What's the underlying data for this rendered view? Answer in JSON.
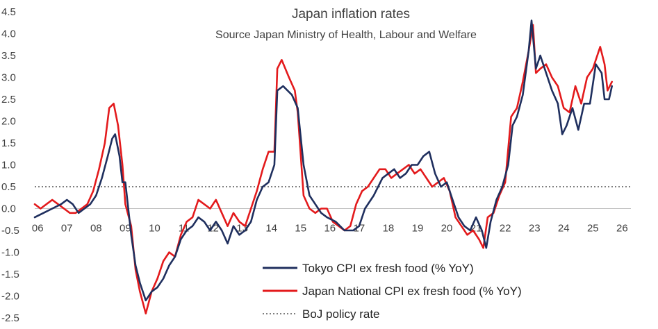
{
  "chart_data": {
    "type": "line",
    "title": "Japan inflation rates",
    "subtitle": "Source Japan Ministry of Health, Labour and Welfare",
    "xlabel": "",
    "ylabel": "",
    "ylim": [
      -2.5,
      4.5
    ],
    "xlim": [
      2006.0,
      2026.4
    ],
    "x_ticks": [
      {
        "x": 2006.1,
        "label": "06"
      },
      {
        "x": 2007.1,
        "label": "07"
      },
      {
        "x": 2008.1,
        "label": "08"
      },
      {
        "x": 2009.1,
        "label": "09"
      },
      {
        "x": 2010.1,
        "label": "10"
      },
      {
        "x": 2011.1,
        "label": "11"
      },
      {
        "x": 2012.1,
        "label": "12"
      },
      {
        "x": 2013.1,
        "label": "13"
      },
      {
        "x": 2014.1,
        "label": "14"
      },
      {
        "x": 2015.1,
        "label": "15"
      },
      {
        "x": 2016.1,
        "label": "16"
      },
      {
        "x": 2017.1,
        "label": "17"
      },
      {
        "x": 2018.1,
        "label": "18"
      },
      {
        "x": 2019.1,
        "label": "19"
      },
      {
        "x": 2020.1,
        "label": "20"
      },
      {
        "x": 2021.1,
        "label": "21"
      },
      {
        "x": 2022.1,
        "label": "22"
      },
      {
        "x": 2023.1,
        "label": "23"
      },
      {
        "x": 2024.1,
        "label": "24"
      },
      {
        "x": 2025.1,
        "label": "25"
      },
      {
        "x": 2026.1,
        "label": "26"
      }
    ],
    "y_ticks": [
      {
        "y": 4.5,
        "label": "4.5"
      },
      {
        "y": 4.0,
        "label": "4.0"
      },
      {
        "y": 3.5,
        "label": "3.5"
      },
      {
        "y": 3.0,
        "label": "3.0"
      },
      {
        "y": 2.5,
        "label": "2.5"
      },
      {
        "y": 2.0,
        "label": "2.0"
      },
      {
        "y": 1.5,
        "label": "1.5"
      },
      {
        "y": 1.0,
        "label": "1.0"
      },
      {
        "y": 0.5,
        "label": "0.5"
      },
      {
        "y": 0.0,
        "label": "0.0"
      },
      {
        "y": -0.5,
        "label": "-0.5"
      },
      {
        "y": -1.0,
        "label": "-1.0"
      },
      {
        "y": -1.5,
        "label": "-1.5"
      },
      {
        "y": -2.0,
        "label": "-2.0"
      },
      {
        "y": -2.5,
        "label": "-2.5"
      }
    ],
    "grid": false,
    "legend": "bottom-right",
    "series": [
      {
        "name": "Tokyo CPI ex fresh food  (% YoY)",
        "color": "#1f2f5e",
        "style": "solid",
        "points": [
          [
            2006.0,
            -0.2
          ],
          [
            2006.3,
            -0.1
          ],
          [
            2006.6,
            0.0
          ],
          [
            2006.9,
            0.1
          ],
          [
            2007.1,
            0.2
          ],
          [
            2007.3,
            0.1
          ],
          [
            2007.5,
            -0.1
          ],
          [
            2007.7,
            0.0
          ],
          [
            2007.9,
            0.1
          ],
          [
            2008.1,
            0.3
          ],
          [
            2008.3,
            0.7
          ],
          [
            2008.5,
            1.2
          ],
          [
            2008.65,
            1.6
          ],
          [
            2008.75,
            1.7
          ],
          [
            2008.9,
            1.2
          ],
          [
            2009.0,
            0.6
          ],
          [
            2009.1,
            0.6
          ],
          [
            2009.3,
            -0.6
          ],
          [
            2009.45,
            -1.3
          ],
          [
            2009.6,
            -1.7
          ],
          [
            2009.8,
            -2.1
          ],
          [
            2010.0,
            -1.9
          ],
          [
            2010.2,
            -1.8
          ],
          [
            2010.4,
            -1.6
          ],
          [
            2010.6,
            -1.3
          ],
          [
            2010.8,
            -1.1
          ],
          [
            2011.0,
            -0.7
          ],
          [
            2011.2,
            -0.5
          ],
          [
            2011.4,
            -0.4
          ],
          [
            2011.6,
            -0.2
          ],
          [
            2011.8,
            -0.3
          ],
          [
            2012.0,
            -0.5
          ],
          [
            2012.2,
            -0.3
          ],
          [
            2012.4,
            -0.5
          ],
          [
            2012.6,
            -0.8
          ],
          [
            2012.8,
            -0.4
          ],
          [
            2013.0,
            -0.6
          ],
          [
            2013.2,
            -0.5
          ],
          [
            2013.4,
            -0.3
          ],
          [
            2013.6,
            0.2
          ],
          [
            2013.8,
            0.5
          ],
          [
            2014.0,
            0.6
          ],
          [
            2014.2,
            1.0
          ],
          [
            2014.3,
            2.7
          ],
          [
            2014.5,
            2.8
          ],
          [
            2014.8,
            2.6
          ],
          [
            2015.0,
            2.3
          ],
          [
            2015.2,
            1.0
          ],
          [
            2015.4,
            0.3
          ],
          [
            2015.6,
            0.1
          ],
          [
            2015.8,
            -0.1
          ],
          [
            2016.0,
            -0.2
          ],
          [
            2016.3,
            -0.3
          ],
          [
            2016.6,
            -0.5
          ],
          [
            2016.9,
            -0.5
          ],
          [
            2017.1,
            -0.4
          ],
          [
            2017.3,
            0.0
          ],
          [
            2017.6,
            0.3
          ],
          [
            2017.9,
            0.7
          ],
          [
            2018.1,
            0.8
          ],
          [
            2018.3,
            0.9
          ],
          [
            2018.5,
            0.7
          ],
          [
            2018.7,
            0.8
          ],
          [
            2018.9,
            1.0
          ],
          [
            2019.1,
            1.0
          ],
          [
            2019.3,
            1.2
          ],
          [
            2019.5,
            1.3
          ],
          [
            2019.7,
            0.8
          ],
          [
            2019.9,
            0.5
          ],
          [
            2020.1,
            0.6
          ],
          [
            2020.3,
            0.2
          ],
          [
            2020.5,
            -0.2
          ],
          [
            2020.7,
            -0.4
          ],
          [
            2020.9,
            -0.5
          ],
          [
            2021.1,
            -0.2
          ],
          [
            2021.3,
            -0.5
          ],
          [
            2021.45,
            -0.9
          ],
          [
            2021.6,
            -0.3
          ],
          [
            2021.8,
            0.2
          ],
          [
            2022.0,
            0.5
          ],
          [
            2022.2,
            1.0
          ],
          [
            2022.35,
            1.9
          ],
          [
            2022.5,
            2.1
          ],
          [
            2022.7,
            2.6
          ],
          [
            2022.9,
            3.6
          ],
          [
            2023.0,
            4.3
          ],
          [
            2023.15,
            3.2
          ],
          [
            2023.3,
            3.5
          ],
          [
            2023.5,
            3.1
          ],
          [
            2023.7,
            2.7
          ],
          [
            2023.9,
            2.4
          ],
          [
            2024.05,
            1.7
          ],
          [
            2024.2,
            1.9
          ],
          [
            2024.4,
            2.3
          ],
          [
            2024.6,
            1.8
          ],
          [
            2024.8,
            2.4
          ],
          [
            2025.0,
            2.4
          ],
          [
            2025.2,
            3.3
          ],
          [
            2025.4,
            3.1
          ],
          [
            2025.5,
            2.5
          ],
          [
            2025.65,
            2.5
          ],
          [
            2025.75,
            2.8
          ]
        ]
      },
      {
        "name": "Japan National CPI ex fresh food  (% YoY)",
        "color": "#e31a1c",
        "style": "solid",
        "points": [
          [
            2006.0,
            0.1
          ],
          [
            2006.2,
            0.0
          ],
          [
            2006.4,
            0.1
          ],
          [
            2006.6,
            0.2
          ],
          [
            2006.8,
            0.1
          ],
          [
            2007.0,
            0.0
          ],
          [
            2007.2,
            -0.1
          ],
          [
            2007.4,
            -0.1
          ],
          [
            2007.6,
            0.0
          ],
          [
            2007.8,
            0.1
          ],
          [
            2008.0,
            0.4
          ],
          [
            2008.2,
            0.9
          ],
          [
            2008.4,
            1.5
          ],
          [
            2008.55,
            2.3
          ],
          [
            2008.7,
            2.4
          ],
          [
            2008.85,
            1.9
          ],
          [
            2009.0,
            1.0
          ],
          [
            2009.1,
            0.1
          ],
          [
            2009.3,
            -0.4
          ],
          [
            2009.45,
            -1.4
          ],
          [
            2009.6,
            -1.9
          ],
          [
            2009.8,
            -2.4
          ],
          [
            2010.0,
            -1.9
          ],
          [
            2010.2,
            -1.6
          ],
          [
            2010.4,
            -1.2
          ],
          [
            2010.6,
            -1.0
          ],
          [
            2010.8,
            -1.1
          ],
          [
            2011.0,
            -0.6
          ],
          [
            2011.2,
            -0.3
          ],
          [
            2011.4,
            -0.2
          ],
          [
            2011.6,
            0.2
          ],
          [
            2011.8,
            0.1
          ],
          [
            2012.0,
            0.0
          ],
          [
            2012.2,
            0.2
          ],
          [
            2012.4,
            -0.1
          ],
          [
            2012.6,
            -0.4
          ],
          [
            2012.8,
            -0.1
          ],
          [
            2013.0,
            -0.3
          ],
          [
            2013.2,
            -0.4
          ],
          [
            2013.4,
            0.0
          ],
          [
            2013.6,
            0.4
          ],
          [
            2013.8,
            0.9
          ],
          [
            2014.0,
            1.3
          ],
          [
            2014.2,
            1.3
          ],
          [
            2014.3,
            3.2
          ],
          [
            2014.45,
            3.4
          ],
          [
            2014.7,
            3.0
          ],
          [
            2014.9,
            2.7
          ],
          [
            2015.0,
            2.2
          ],
          [
            2015.2,
            0.3
          ],
          [
            2015.4,
            0.0
          ],
          [
            2015.6,
            -0.1
          ],
          [
            2015.8,
            0.0
          ],
          [
            2016.0,
            0.0
          ],
          [
            2016.2,
            -0.3
          ],
          [
            2016.4,
            -0.4
          ],
          [
            2016.6,
            -0.5
          ],
          [
            2016.8,
            -0.4
          ],
          [
            2017.0,
            0.1
          ],
          [
            2017.2,
            0.4
          ],
          [
            2017.4,
            0.5
          ],
          [
            2017.6,
            0.7
          ],
          [
            2017.8,
            0.9
          ],
          [
            2018.0,
            0.9
          ],
          [
            2018.2,
            0.7
          ],
          [
            2018.4,
            0.8
          ],
          [
            2018.6,
            0.9
          ],
          [
            2018.8,
            1.0
          ],
          [
            2019.0,
            0.8
          ],
          [
            2019.2,
            0.9
          ],
          [
            2019.4,
            0.7
          ],
          [
            2019.6,
            0.5
          ],
          [
            2019.8,
            0.6
          ],
          [
            2020.0,
            0.7
          ],
          [
            2020.2,
            0.4
          ],
          [
            2020.4,
            -0.2
          ],
          [
            2020.6,
            -0.4
          ],
          [
            2020.8,
            -0.6
          ],
          [
            2021.0,
            -0.5
          ],
          [
            2021.2,
            -0.7
          ],
          [
            2021.35,
            -0.9
          ],
          [
            2021.5,
            -0.2
          ],
          [
            2021.7,
            -0.1
          ],
          [
            2021.9,
            0.3
          ],
          [
            2022.1,
            0.6
          ],
          [
            2022.3,
            2.1
          ],
          [
            2022.5,
            2.3
          ],
          [
            2022.7,
            2.9
          ],
          [
            2022.9,
            3.6
          ],
          [
            2023.05,
            4.2
          ],
          [
            2023.15,
            3.1
          ],
          [
            2023.3,
            3.2
          ],
          [
            2023.5,
            3.3
          ],
          [
            2023.7,
            3.0
          ],
          [
            2023.9,
            2.8
          ],
          [
            2024.1,
            2.3
          ],
          [
            2024.3,
            2.2
          ],
          [
            2024.5,
            2.8
          ],
          [
            2024.7,
            2.4
          ],
          [
            2024.9,
            3.0
          ],
          [
            2025.1,
            3.2
          ],
          [
            2025.25,
            3.5
          ],
          [
            2025.35,
            3.7
          ],
          [
            2025.5,
            3.3
          ],
          [
            2025.6,
            2.7
          ],
          [
            2025.75,
            2.9
          ]
        ]
      },
      {
        "name": "BoJ policy rate",
        "color": "#7f7f7f",
        "style": "dotted",
        "points": [
          [
            2006.0,
            0.5
          ],
          [
            2026.4,
            0.5
          ]
        ]
      }
    ]
  }
}
